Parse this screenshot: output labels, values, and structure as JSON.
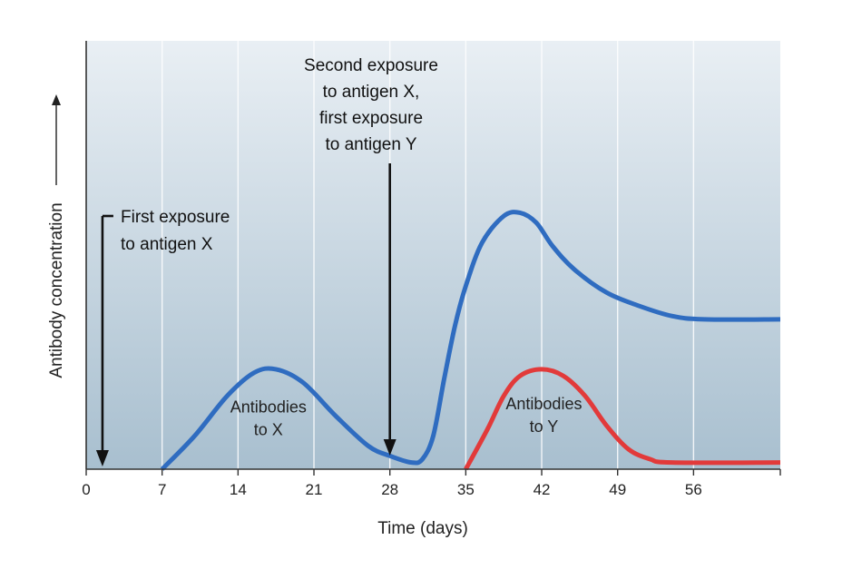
{
  "chart_data": {
    "type": "line",
    "title": "",
    "xlabel": "Time (days)",
    "ylabel": "Antibody concentration",
    "xlim": [
      0,
      64
    ],
    "ylim": [
      0,
      1
    ],
    "x_ticks": [
      0,
      7,
      14,
      21,
      28,
      35,
      42,
      49,
      56
    ],
    "y_ticks": [],
    "grid": "vertical",
    "colors": {
      "background_top": "#e9eff4",
      "background_bottom": "#a8bfcf",
      "gridline": "#ffffff",
      "series_x": "#2f6cc0",
      "series_y": "#e23a3a"
    },
    "series": [
      {
        "name": "Antibodies to X",
        "color": "#2f6cc0",
        "points": [
          [
            7,
            0.0
          ],
          [
            10,
            0.1
          ],
          [
            13,
            0.22
          ],
          [
            15.5,
            0.29
          ],
          [
            17.5,
            0.3
          ],
          [
            20,
            0.26
          ],
          [
            23,
            0.16
          ],
          [
            26,
            0.07
          ],
          [
            28,
            0.04
          ],
          [
            30,
            0.02
          ],
          [
            31,
            0.03
          ],
          [
            32,
            0.1
          ],
          [
            33,
            0.27
          ],
          [
            34,
            0.43
          ],
          [
            35,
            0.55
          ],
          [
            36.5,
            0.68
          ],
          [
            38.5,
            0.76
          ],
          [
            40,
            0.77
          ],
          [
            41.5,
            0.74
          ],
          [
            43,
            0.67
          ],
          [
            45,
            0.6
          ],
          [
            48,
            0.53
          ],
          [
            51,
            0.49
          ],
          [
            54,
            0.46
          ],
          [
            57,
            0.45
          ],
          [
            64,
            0.45
          ]
        ]
      },
      {
        "name": "Antibodies to Y",
        "color": "#e23a3a",
        "points": [
          [
            35,
            0.0
          ],
          [
            37,
            0.12
          ],
          [
            38.5,
            0.22
          ],
          [
            40,
            0.28
          ],
          [
            42,
            0.3
          ],
          [
            44,
            0.28
          ],
          [
            46,
            0.22
          ],
          [
            48,
            0.13
          ],
          [
            50,
            0.06
          ],
          [
            52,
            0.03
          ],
          [
            54,
            0.02
          ],
          [
            64,
            0.02
          ]
        ]
      }
    ],
    "curve_labels": [
      {
        "lines": [
          "Antibodies",
          "to X"
        ],
        "x": 16.8,
        "y": 0.105
      },
      {
        "lines": [
          "Antibodies",
          "to Y"
        ],
        "x": 42.2,
        "y": 0.115
      }
    ],
    "annotations": [
      {
        "lines": [
          "First exposure",
          "to antigen X"
        ],
        "x": 1.5
      },
      {
        "lines": [
          "Second exposure",
          "to antigen X,",
          "first exposure",
          "to antigen Y"
        ],
        "x": 28
      }
    ]
  }
}
